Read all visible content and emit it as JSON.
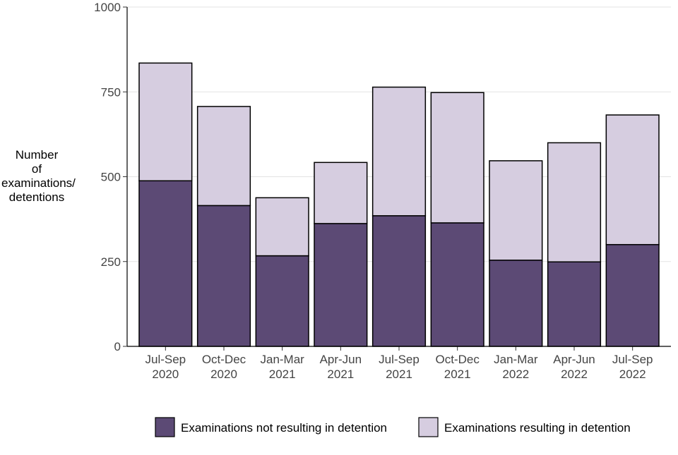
{
  "chart_data": {
    "type": "bar",
    "stacked": true,
    "categories": [
      [
        "Jul-Sep",
        "2020"
      ],
      [
        "Oct-Dec",
        "2020"
      ],
      [
        "Jan-Mar",
        "2021"
      ],
      [
        "Apr-Jun",
        "2021"
      ],
      [
        "Jul-Sep",
        "2021"
      ],
      [
        "Oct-Dec",
        "2021"
      ],
      [
        "Jan-Mar",
        "2022"
      ],
      [
        "Apr-Jun",
        "2022"
      ],
      [
        "Jul-Sep",
        "2022"
      ]
    ],
    "series": [
      {
        "name": "Examinations not resulting in detention",
        "color": "#5c4a75",
        "values": [
          488,
          415,
          267,
          362,
          385,
          364,
          254,
          249,
          300
        ]
      },
      {
        "name": "Examinations resulting in detention",
        "color": "#d6cde0",
        "values": [
          347,
          292,
          171,
          180,
          379,
          384,
          293,
          351,
          382
        ]
      }
    ],
    "ylabel_lines": [
      "Number",
      "of",
      "examinations/",
      "detentions"
    ],
    "ylim": [
      0,
      1000
    ],
    "yticks": [
      0,
      250,
      500,
      750,
      1000
    ],
    "grid": true,
    "legend_position": "bottom-right"
  }
}
